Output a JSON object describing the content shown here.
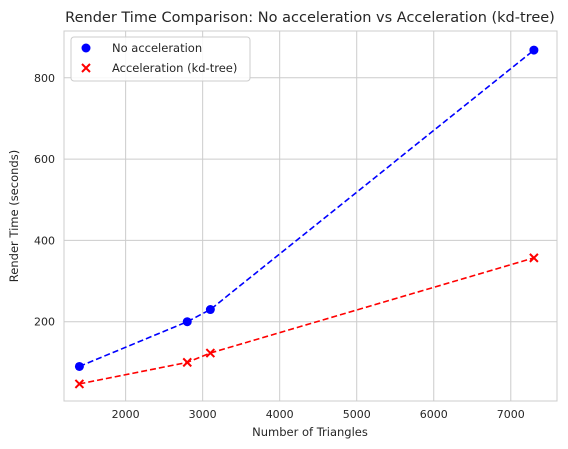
{
  "chart_data": {
    "type": "scatter",
    "title": "Render Time Comparison: No acceleration vs Acceleration (kd-tree)",
    "xlabel": "Number of Triangles",
    "ylabel": "Render Time (seconds)",
    "xlim": [
      1200,
      7600
    ],
    "ylim": [
      5,
      915
    ],
    "xticks": [
      2000,
      3000,
      4000,
      5000,
      6000,
      7000
    ],
    "yticks": [
      200,
      400,
      600,
      800
    ],
    "grid": true,
    "legend_position": "top-left",
    "series": [
      {
        "name": "No acceleration",
        "marker": "circle",
        "line": "dashed",
        "color": "#0000ff",
        "x": [
          1400,
          2800,
          3100,
          7300
        ],
        "y": [
          90,
          200,
          230,
          868
        ]
      },
      {
        "name": "Acceleration (kd-tree)",
        "marker": "x",
        "line": "dashed",
        "color": "#ff0000",
        "x": [
          1400,
          2800,
          3100,
          7300
        ],
        "y": [
          47,
          100,
          123,
          357
        ]
      }
    ]
  }
}
